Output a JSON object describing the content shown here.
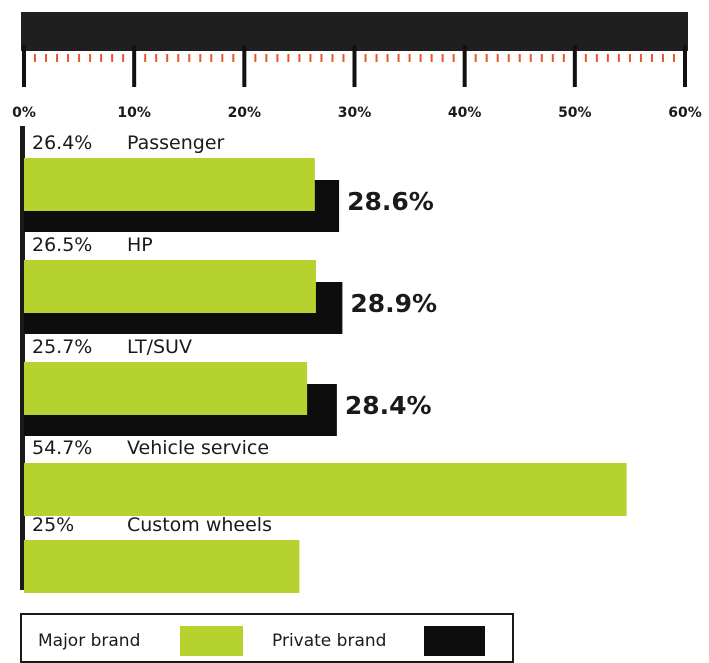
{
  "chart_data": {
    "type": "bar",
    "orientation": "horizontal",
    "categories": [
      "Passenger",
      "HP",
      "LT/SUV",
      "Vehicle service",
      "Custom wheels"
    ],
    "series": [
      {
        "name": "Major brand",
        "color": "#b5d22f",
        "values": [
          26.4,
          26.5,
          25.7,
          54.7,
          25
        ]
      },
      {
        "name": "Private brand",
        "color": "#0d0d0d",
        "values": [
          28.6,
          28.9,
          28.4,
          null,
          null
        ]
      }
    ],
    "major_labels": [
      "26.4%",
      "26.5%",
      "25.7%",
      "54.7%",
      "25%"
    ],
    "private_labels": [
      "28.6%",
      "28.9%",
      "28.4%",
      "",
      ""
    ],
    "xlim": [
      0,
      60
    ],
    "xticks": [
      "0%",
      "10%",
      "20%",
      "30%",
      "40%",
      "50%",
      "60%"
    ],
    "legend_position": "bottom-left",
    "tick_accent_color": "#e8572a",
    "axis_band_color": "#1f1f1f"
  }
}
